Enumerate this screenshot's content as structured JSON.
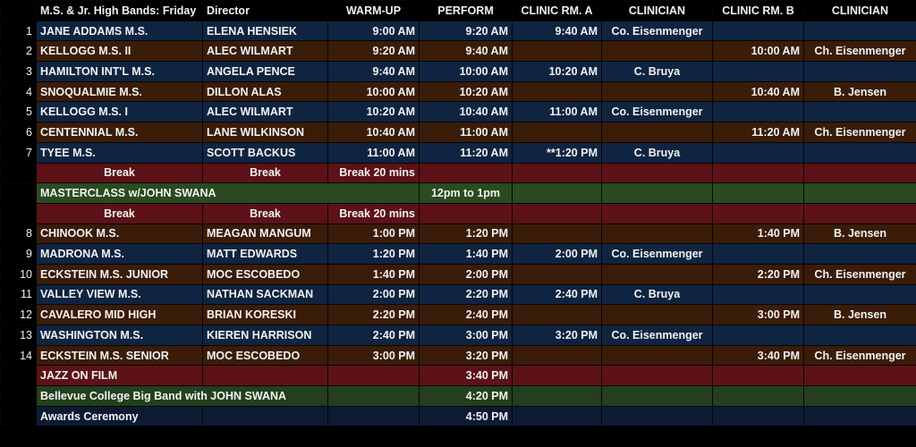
{
  "headers": [
    "M.S. & Jr. High Bands: Friday",
    "Director",
    "WARM-UP",
    "PERFORM",
    "CLINIC RM. A",
    "CLINICIAN",
    "CLINIC RM. B",
    "CLINICIAN"
  ],
  "rows": [
    {
      "num": "1",
      "school": "JANE ADDAMS M.S.",
      "director": "ELENA HENSIEK",
      "warmup": "9:00 AM",
      "perform": "9:20 AM",
      "roomA": "9:40 AM",
      "clinicianA": "Co. Eisenmenger",
      "roomB": "",
      "clinicianB": ""
    },
    {
      "num": "2",
      "school": "KELLOGG M.S. II",
      "director": "ALEC WILMART",
      "warmup": "9:20 AM",
      "perform": "9:40 AM",
      "roomA": "",
      "clinicianA": "",
      "roomB": "10:00 AM",
      "clinicianB": "Ch. Eisenmenger"
    },
    {
      "num": "3",
      "school": "HAMILTON INT'L M.S.",
      "director": "ANGELA PENCE",
      "warmup": "9:40 AM",
      "perform": "10:00 AM",
      "roomA": "10:20 AM",
      "clinicianA": "C. Bruya",
      "roomB": "",
      "clinicianB": ""
    },
    {
      "num": "4",
      "school": "SNOQUALMIE M.S.",
      "director": "DILLON ALAS",
      "warmup": "10:00 AM",
      "perform": "10:20 AM",
      "roomA": "",
      "clinicianA": "",
      "roomB": "10:40 AM",
      "clinicianB": "B. Jensen"
    },
    {
      "num": "5",
      "school": "KELLOGG M.S. I",
      "director": "ALEC WILMART",
      "warmup": "10:20 AM",
      "perform": "10:40 AM",
      "roomA": "11:00 AM",
      "clinicianA": "Co. Eisenmenger",
      "roomB": "",
      "clinicianB": ""
    },
    {
      "num": "6",
      "school": "CENTENNIAL M.S.",
      "director": "LANE WILKINSON",
      "warmup": "10:40 AM",
      "perform": "11:00 AM",
      "roomA": "",
      "clinicianA": "",
      "roomB": "11:20 AM",
      "clinicianB": "Ch. Eisenmenger"
    },
    {
      "num": "7",
      "school": "TYEE M.S.",
      "director": "SCOTT BACKUS",
      "warmup": "11:00 AM",
      "perform": "11:20 AM",
      "roomA": "**1:20 PM",
      "clinicianA": "C. Bruya",
      "roomB": "",
      "clinicianB": ""
    },
    {
      "num": "8",
      "school": "CHINOOK M.S.",
      "director": "MEAGAN MANGUM",
      "warmup": "1:00 PM",
      "perform": "1:20 PM",
      "roomA": "",
      "clinicianA": "",
      "roomB": "1:40 PM",
      "clinicianB": "B. Jensen"
    },
    {
      "num": "9",
      "school": "MADRONA M.S.",
      "director": "MATT EDWARDS",
      "warmup": "1:20 PM",
      "perform": "1:40 PM",
      "roomA": "2:00 PM",
      "clinicianA": "Co. Eisenmenger",
      "roomB": "",
      "clinicianB": ""
    },
    {
      "num": "10",
      "school": "ECKSTEIN M.S. JUNIOR",
      "director": "MOC ESCOBEDO",
      "warmup": "1:40 PM",
      "perform": "2:00 PM",
      "roomA": "",
      "clinicianA": "",
      "roomB": "2:20 PM",
      "clinicianB": "Ch. Eisenmenger"
    },
    {
      "num": "11",
      "school": "VALLEY VIEW M.S.",
      "director": "NATHAN SACKMAN",
      "warmup": "2:00 PM",
      "perform": "2:20 PM",
      "roomA": "2:40 PM",
      "clinicianA": "C. Bruya",
      "roomB": "",
      "clinicianB": ""
    },
    {
      "num": "12",
      "school": "CAVALERO MID HIGH",
      "director": "BRIAN KORESKI",
      "warmup": "2:20 PM",
      "perform": "2:40 PM",
      "roomA": "",
      "clinicianA": "",
      "roomB": "3:00 PM",
      "clinicianB": "B. Jensen"
    },
    {
      "num": "13",
      "school": "WASHINGTON M.S.",
      "director": "KIEREN HARRISON",
      "warmup": "2:40 PM",
      "perform": "3:00 PM",
      "roomA": "3:20 PM",
      "clinicianA": "Co. Eisenmenger",
      "roomB": "",
      "clinicianB": ""
    },
    {
      "num": "14",
      "school": "ECKSTEIN M.S. SENIOR",
      "director": "MOC ESCOBEDO",
      "warmup": "3:00 PM",
      "perform": "3:20 PM",
      "roomA": "",
      "clinicianA": "",
      "roomB": "3:40 PM",
      "clinicianB": "Ch. Eisenmenger"
    }
  ],
  "break_row": {
    "col1": "Break",
    "col2": "Break",
    "col3": "Break 20 mins"
  },
  "masterclass": {
    "label": "MASTERCLASS w/JOHN SWANA",
    "time": "12pm to 1pm"
  },
  "final_events": [
    {
      "label": "JAZZ ON FILM",
      "time": "3:40 PM"
    },
    {
      "label": "Bellevue College Big Band with JOHN SWANA",
      "time": "4:20 PM"
    },
    {
      "label": "Awards Ceremony",
      "time": "4:50 PM"
    }
  ],
  "colors": {
    "blue": "#0f2440",
    "brown": "#3a1c09",
    "red": "#5c1216",
    "green": "#2a4a1f"
  }
}
